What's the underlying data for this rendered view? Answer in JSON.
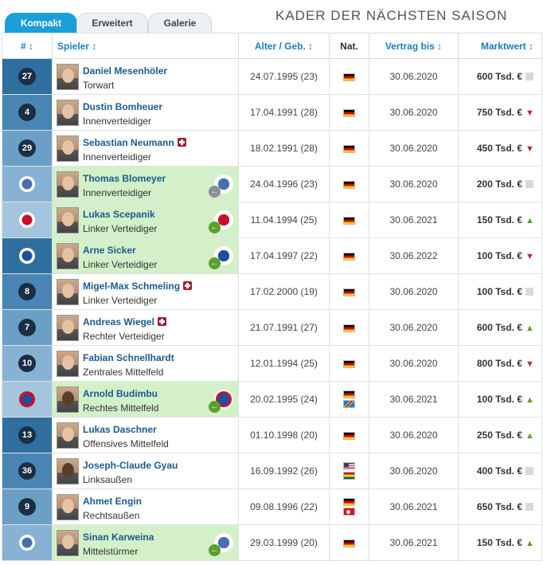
{
  "tabs": [
    {
      "label": "Kompakt",
      "active": true
    },
    {
      "label": "Erweitert",
      "active": false
    },
    {
      "label": "Galerie",
      "active": false
    }
  ],
  "page_title": "KADER DER NÄCHSTEN SAISON",
  "columns": {
    "number": "# ↕",
    "player": "Spieler ↕",
    "age": "Alter / Geb. ↕",
    "nat": "Nat.",
    "contract": "Vertrag bis ↕",
    "value": "Marktwert ↕"
  },
  "colors": {
    "accent": "#1a9fd8",
    "loan_bg": "#d4f0c8",
    "number_badge": "#1b2e44",
    "trend_up": "#5aa02c",
    "trend_down": "#c0272d"
  },
  "players": [
    {
      "number": "27",
      "club_badge": null,
      "name": "Daniel Mesenhöler",
      "position": "Torwart",
      "injured": false,
      "loan": false,
      "birth": "24.07.1995 (23)",
      "flags": [
        "de"
      ],
      "contract": "30.06.2020",
      "value": "600 Tsd. €",
      "trend": "same"
    },
    {
      "number": "4",
      "club_badge": null,
      "name": "Dustin Bomheuer",
      "position": "Innenverteidiger",
      "injured": false,
      "loan": false,
      "birth": "17.04.1991 (28)",
      "flags": [
        "de"
      ],
      "contract": "30.06.2020",
      "value": "750 Tsd. €",
      "trend": "down"
    },
    {
      "number": "29",
      "club_badge": null,
      "name": "Sebastian Neumann",
      "position": "Innenverteidiger",
      "injured": true,
      "loan": false,
      "birth": "18.02.1991 (28)",
      "flags": [
        "de"
      ],
      "contract": "30.06.2020",
      "value": "450 Tsd. €",
      "trend": "down"
    },
    {
      "number": "",
      "club_badge": "vfl-osnabrueck-badge",
      "name": "Thomas Blomeyer",
      "position": "Innenverteidiger",
      "injured": false,
      "loan": true,
      "loan_dir": "out",
      "birth": "24.04.1996 (23)",
      "flags": [
        "de"
      ],
      "contract": "30.06.2020",
      "value": "200 Tsd. €",
      "trend": "same"
    },
    {
      "number": "",
      "club_badge": "rot-weiss-essen-badge",
      "name": "Lukas Scepanik",
      "position": "Linker Verteidiger",
      "injured": false,
      "loan": true,
      "loan_dir": "in",
      "birth": "11.04.1994 (25)",
      "flags": [
        "de"
      ],
      "contract": "30.06.2021",
      "value": "150 Tsd. €",
      "trend": "up"
    },
    {
      "number": "",
      "club_badge": "holstein-kiel-badge",
      "name": "Arne Sicker",
      "position": "Linker Verteidiger",
      "injured": false,
      "loan": true,
      "loan_dir": "in",
      "birth": "17.04.1997 (22)",
      "flags": [
        "de"
      ],
      "contract": "30.06.2022",
      "value": "100 Tsd. €",
      "trend": "down"
    },
    {
      "number": "8",
      "club_badge": null,
      "name": "Migel-Max Schmeling",
      "position": "Linker Verteidiger",
      "injured": true,
      "loan": false,
      "birth": "17.02.2000 (19)",
      "flags": [
        "de"
      ],
      "contract": "30.06.2020",
      "value": "100 Tsd. €",
      "trend": "same"
    },
    {
      "number": "7",
      "club_badge": null,
      "name": "Andreas Wiegel",
      "position": "Rechter Verteidiger",
      "injured": true,
      "loan": false,
      "birth": "21.07.1991 (27)",
      "flags": [
        "de"
      ],
      "contract": "30.06.2020",
      "value": "600 Tsd. €",
      "trend": "up"
    },
    {
      "number": "10",
      "club_badge": null,
      "name": "Fabian Schnellhardt",
      "position": "Zentrales Mittelfeld",
      "injured": false,
      "loan": false,
      "birth": "12.01.1994 (25)",
      "flags": [
        "de"
      ],
      "contract": "30.06.2020",
      "value": "800 Tsd. €",
      "trend": "down"
    },
    {
      "number": "",
      "club_badge": "kfc-uerdingen-badge",
      "name": "Arnold Budimbu",
      "position": "Rechtes Mittelfeld",
      "injured": false,
      "loan": true,
      "loan_dir": "in",
      "birth": "20.02.1995 (24)",
      "flags": [
        "de",
        "cd"
      ],
      "contract": "30.06.2021",
      "value": "100 Tsd. €",
      "trend": "up"
    },
    {
      "number": "13",
      "club_badge": null,
      "name": "Lukas Daschner",
      "position": "Offensives Mittelfeld",
      "injured": false,
      "loan": false,
      "birth": "01.10.1998 (20)",
      "flags": [
        "de"
      ],
      "contract": "30.06.2020",
      "value": "250 Tsd. €",
      "trend": "up"
    },
    {
      "number": "36",
      "club_badge": null,
      "name": "Joseph-Claude Gyau",
      "position": "Linksaußen",
      "injured": false,
      "loan": false,
      "birth": "16.09.1992 (26)",
      "flags": [
        "us",
        "gh"
      ],
      "contract": "30.06.2020",
      "value": "400 Tsd. €",
      "trend": "same"
    },
    {
      "number": "9",
      "club_badge": null,
      "name": "Ahmet Engin",
      "position": "Rechtsaußen",
      "injured": false,
      "loan": false,
      "birth": "09.08.1996 (22)",
      "flags": [
        "de",
        "tr"
      ],
      "contract": "30.06.2021",
      "value": "650 Tsd. €",
      "trend": "same"
    },
    {
      "number": "",
      "club_badge": "vfl-osnabrueck-badge",
      "name": "Sinan Karweina",
      "position": "Mittelstürmer",
      "injured": false,
      "loan": true,
      "loan_dir": "in",
      "birth": "29.03.1999 (20)",
      "flags": [
        "de"
      ],
      "contract": "30.06.2021",
      "value": "150 Tsd. €",
      "trend": "up"
    }
  ]
}
